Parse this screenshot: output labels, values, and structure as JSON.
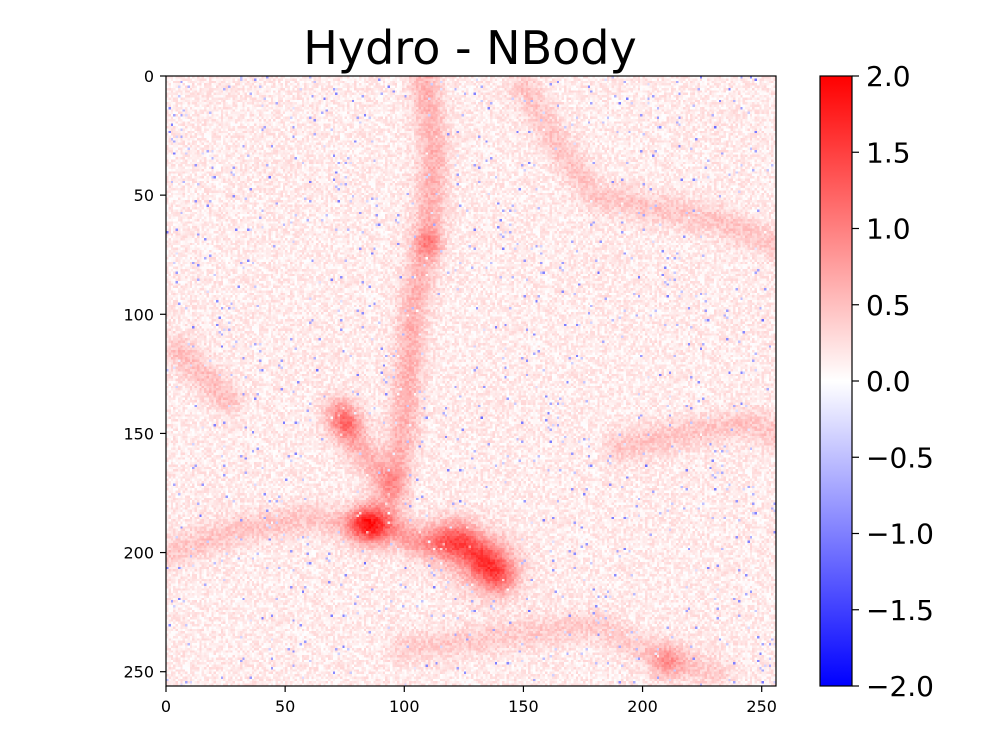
{
  "chart_data": {
    "type": "heatmap",
    "title": "Hydro - NBody",
    "xlabel": "",
    "ylabel": "",
    "grid_size": [
      256,
      256
    ],
    "xlim": [
      0,
      256
    ],
    "ylim": [
      256,
      0
    ],
    "x_ticks": [
      "0",
      "50",
      "100",
      "150",
      "200",
      "250"
    ],
    "x_tick_values": [
      0,
      50,
      100,
      150,
      200,
      250
    ],
    "y_ticks": [
      "0",
      "50",
      "100",
      "150",
      "200",
      "250"
    ],
    "y_tick_values": [
      0,
      50,
      100,
      150,
      200,
      250
    ],
    "colormap": "bwr",
    "colormap_colors": [
      "#0000ff",
      "#ffffff",
      "#ff0000"
    ],
    "value_range": [
      -2.0,
      2.0
    ],
    "colorbar_ticks": [
      "2.0",
      "1.5",
      "1.0",
      "0.5",
      "0.0",
      "−0.5",
      "−1.0",
      "−1.5",
      "−2.0"
    ],
    "colorbar_tick_values": [
      2.0,
      1.5,
      1.0,
      0.5,
      0.0,
      -0.5,
      -1.0,
      -1.5,
      -2.0
    ],
    "typical_value": 0.15,
    "filaments": [
      {
        "points": [
          [
            108,
            0
          ],
          [
            112,
            30
          ],
          [
            110,
            60
          ],
          [
            103,
            100
          ],
          [
            100,
            140
          ],
          [
            95,
            175
          ],
          [
            88,
            190
          ]
        ],
        "intensity": 0.45
      },
      {
        "points": [
          [
            85,
            185
          ],
          [
            105,
            195
          ],
          [
            125,
            195
          ],
          [
            135,
            205
          ],
          [
            140,
            210
          ]
        ],
        "intensity": 0.6
      },
      {
        "points": [
          [
            150,
            5
          ],
          [
            165,
            30
          ],
          [
            180,
            50
          ],
          [
            205,
            55
          ],
          [
            230,
            60
          ],
          [
            256,
            70
          ]
        ],
        "intensity": 0.3
      },
      {
        "points": [
          [
            0,
            200
          ],
          [
            30,
            190
          ],
          [
            60,
            185
          ],
          [
            85,
            190
          ]
        ],
        "intensity": 0.3
      },
      {
        "points": [
          [
            72,
            140
          ],
          [
            80,
            155
          ],
          [
            92,
            170
          ]
        ],
        "intensity": 0.45
      },
      {
        "points": [
          [
            5,
            115
          ],
          [
            15,
            125
          ],
          [
            25,
            135
          ]
        ],
        "intensity": 0.35
      },
      {
        "points": [
          [
            190,
            155
          ],
          [
            215,
            150
          ],
          [
            245,
            145
          ],
          [
            256,
            150
          ]
        ],
        "intensity": 0.3
      },
      {
        "points": [
          [
            100,
            240
          ],
          [
            140,
            235
          ],
          [
            180,
            230
          ],
          [
            210,
            245
          ],
          [
            230,
            250
          ]
        ],
        "intensity": 0.25
      }
    ],
    "blobs": [
      {
        "x": 135,
        "y": 205,
        "r": 8,
        "value": 0.9
      },
      {
        "x": 120,
        "y": 195,
        "r": 7,
        "value": 0.7
      },
      {
        "x": 82,
        "y": 188,
        "r": 5,
        "value": 0.8
      },
      {
        "x": 75,
        "y": 145,
        "r": 5,
        "value": 0.6
      },
      {
        "x": 110,
        "y": 70,
        "r": 4,
        "value": 0.5
      },
      {
        "x": 210,
        "y": 245,
        "r": 5,
        "value": 0.5
      }
    ]
  }
}
